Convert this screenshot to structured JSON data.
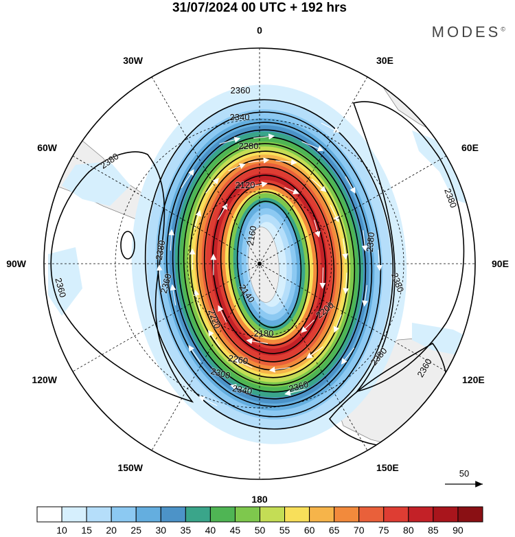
{
  "header": {
    "title": "31/07/2024  00 UTC  + 192 hrs",
    "brand": "MODES",
    "brand_mark": "©"
  },
  "map": {
    "projection": "south-polar-stereographic",
    "longitude_labels": [
      "0",
      "30E",
      "60E",
      "90E",
      "120E",
      "150E",
      "180",
      "150W",
      "120W",
      "90W",
      "60W",
      "30W"
    ],
    "contour_labels": [
      "2360",
      "2340",
      "2280",
      "2120",
      "2380",
      "2380",
      "2380",
      "2380",
      "2360",
      "2360",
      "2360",
      "2380",
      "2160",
      "2140",
      "2180",
      "2200",
      "2220",
      "2260",
      "2300",
      "2340",
      "2360",
      "2380"
    ],
    "contour_values": [
      2120,
      2140,
      2160,
      2180,
      2200,
      2220,
      2240,
      2260,
      2280,
      2300,
      2320,
      2340,
      2360,
      2380
    ]
  },
  "vector_scale": {
    "label": "50"
  },
  "colorbar": {
    "labels": [
      "10",
      "15",
      "20",
      "25",
      "30",
      "35",
      "40",
      "45",
      "50",
      "55",
      "60",
      "65",
      "70",
      "75",
      "80",
      "85",
      "90"
    ],
    "colors": [
      "#ffffff",
      "#d6effd",
      "#b5defa",
      "#8cc9f2",
      "#64aedf",
      "#4c93c8",
      "#3aa58a",
      "#4fb554",
      "#7ec84d",
      "#c4dd55",
      "#f8df5a",
      "#f6b44a",
      "#f28a3c",
      "#e9603a",
      "#de3d33",
      "#c32127",
      "#a9151c",
      "#8a1014"
    ]
  }
}
